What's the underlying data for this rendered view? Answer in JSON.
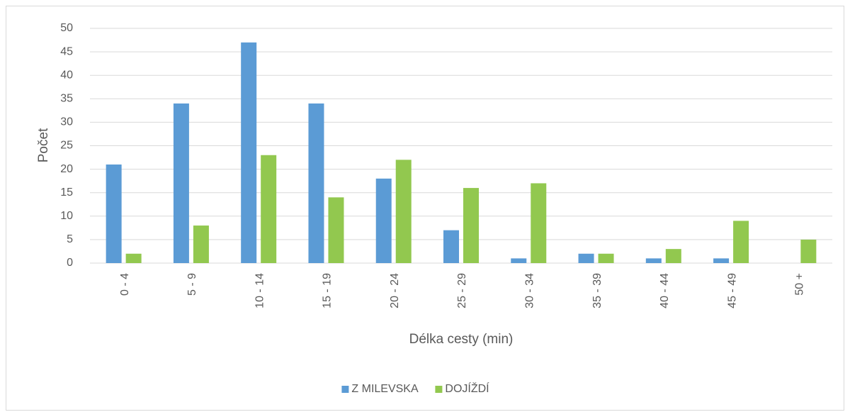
{
  "chart_data": {
    "type": "bar",
    "x_label": "Délka cesty (min)",
    "y_label": "Počet",
    "categories": [
      "0 - 4",
      "5 - 9",
      "10 - 14",
      "15 - 19",
      "20 - 24",
      "25 - 29",
      "30 - 34",
      "35 - 39",
      "40 - 44",
      "45 - 49",
      "50 +"
    ],
    "series": [
      {
        "name": "Z MILEVSKA",
        "color": "#5b9bd5",
        "values": [
          21,
          34,
          47,
          34,
          18,
          7,
          1,
          2,
          1,
          1,
          0
        ]
      },
      {
        "name": "DOJÍŽDÍ",
        "color": "#92c84f",
        "values": [
          2,
          8,
          23,
          14,
          22,
          16,
          17,
          2,
          3,
          9,
          5
        ]
      }
    ],
    "ylim": [
      0,
      50
    ],
    "yticks": [
      0,
      5,
      10,
      15,
      20,
      25,
      30,
      35,
      40,
      45,
      50
    ],
    "grid": true,
    "legend": "bottom"
  }
}
